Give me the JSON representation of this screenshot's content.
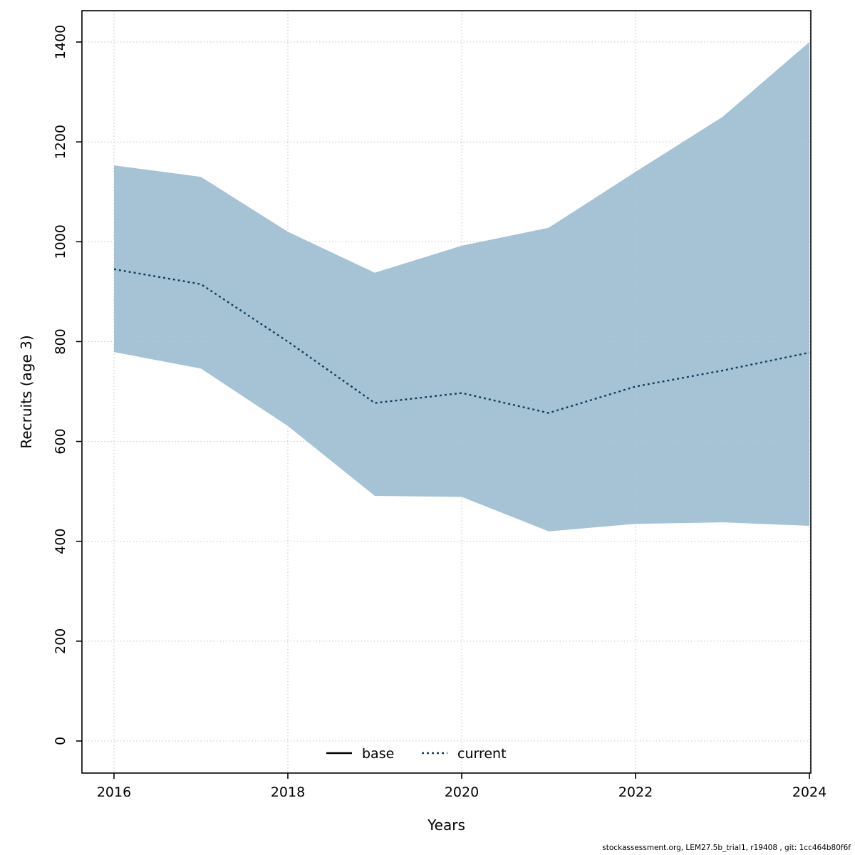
{
  "chart_data": {
    "type": "area",
    "title": "",
    "xlabel": "Years",
    "ylabel": "Recruits (age 3)",
    "x": [
      2016,
      2017,
      2018,
      2019,
      2020,
      2021,
      2022,
      2023,
      2024
    ],
    "series": [
      {
        "name": "current",
        "style": "dotted",
        "color": "#10405f",
        "values": [
          945,
          915,
          800,
          677,
          697,
          657,
          710,
          742,
          778
        ]
      }
    ],
    "band": {
      "name": "confidence-band",
      "color": "#a5c3d5",
      "upper": [
        1153,
        1130,
        1020,
        938,
        992,
        1028,
        1140,
        1250,
        1400
      ],
      "lower": [
        779,
        746,
        631,
        491,
        489,
        420,
        435,
        438,
        431
      ]
    },
    "xticks": [
      2016,
      2018,
      2020,
      2022,
      2024
    ],
    "yticks": [
      0,
      200,
      400,
      600,
      800,
      1000,
      1200,
      1400
    ],
    "xlim": [
      2016,
      2024
    ],
    "ylim": [
      0,
      1400
    ],
    "grid": true,
    "legend": [
      {
        "label": "base",
        "line": "solid",
        "color": "#000000"
      },
      {
        "label": "current",
        "line": "dotted",
        "color": "#10405f"
      }
    ],
    "legend_position": "bottom-center-inside"
  },
  "footer": {
    "text": "stockassessment.org, LEM27.5b_trial1, r19408 , git: 1cc464b80f6f"
  },
  "colors": {
    "band": "#a5c3d5",
    "current_line": "#10405f",
    "grid": "#c3c3c3",
    "axis": "#000000",
    "background": "#ffffff"
  }
}
